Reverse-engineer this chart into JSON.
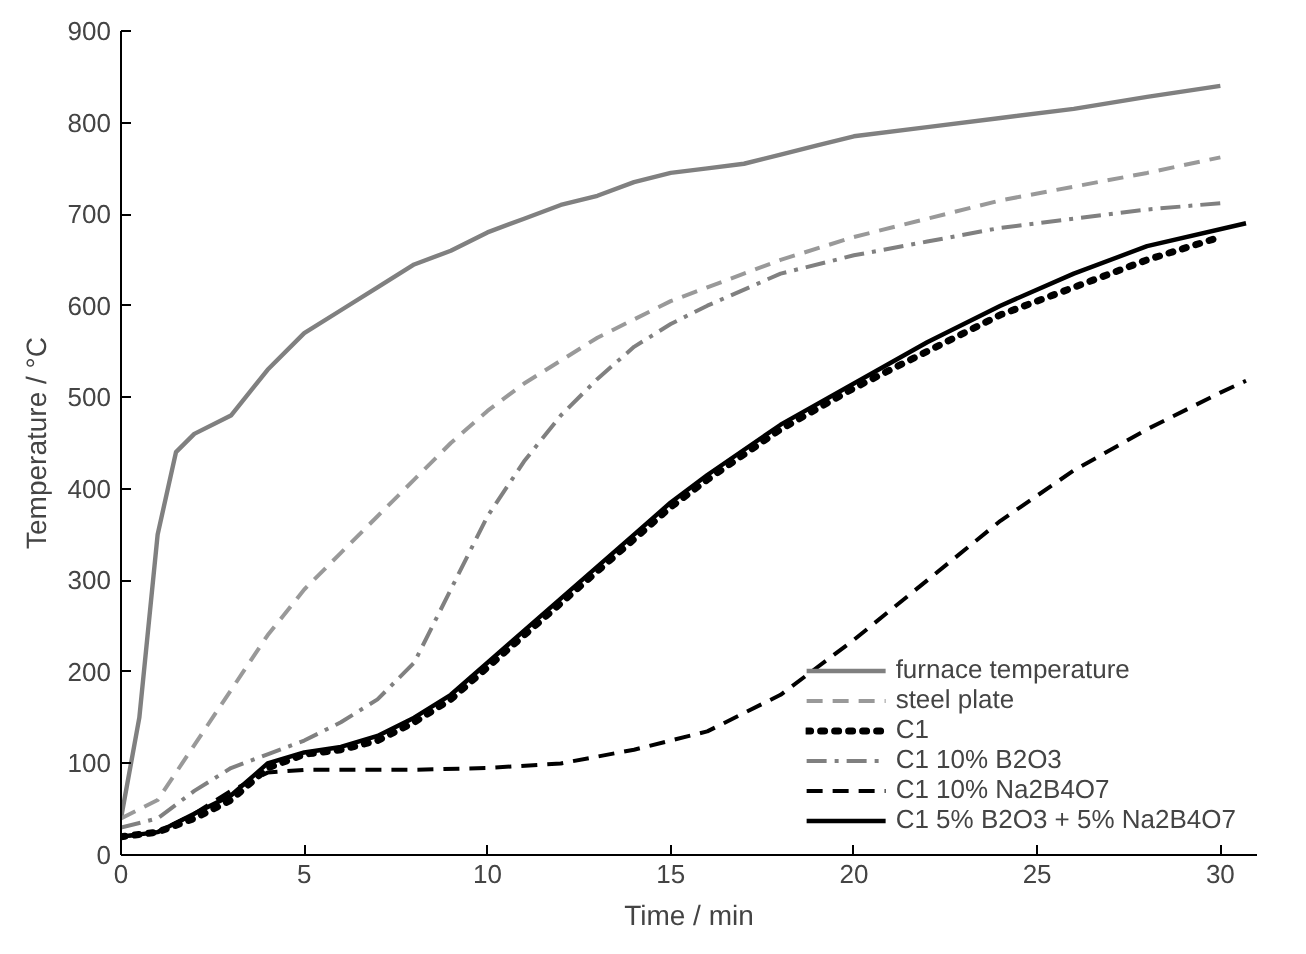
{
  "chart_data": {
    "type": "line",
    "xlabel": "Time / min",
    "ylabel": "Temperature / °C",
    "xlim": [
      0,
      31
    ],
    "ylim": [
      0,
      900
    ],
    "xticks": [
      0,
      5,
      10,
      15,
      20,
      25,
      30
    ],
    "yticks": [
      0,
      100,
      200,
      300,
      400,
      500,
      600,
      700,
      800,
      900
    ],
    "grid": false,
    "legend": "bottom right",
    "series": [
      {
        "name": "furnace temperature",
        "color": "#808080",
        "line_style": "solid",
        "x": [
          0,
          0.5,
          1,
          1.5,
          2,
          3,
          4,
          5,
          6,
          7,
          8,
          9,
          10,
          11,
          12,
          13,
          14,
          15,
          16,
          17,
          18,
          19,
          20,
          22,
          24,
          26,
          28,
          30
        ],
        "values": [
          40,
          150,
          350,
          440,
          460,
          480,
          530,
          570,
          595,
          620,
          645,
          660,
          680,
          695,
          710,
          720,
          735,
          745,
          750,
          755,
          765,
          775,
          785,
          795,
          805,
          815,
          828,
          840
        ]
      },
      {
        "name": "steel plate",
        "color": "#999999",
        "line_style": "dashed",
        "x": [
          0,
          1,
          2,
          3,
          4,
          5,
          6,
          7,
          8,
          9,
          10,
          11,
          12,
          13,
          14,
          15,
          16,
          18,
          20,
          22,
          24,
          26,
          28,
          30
        ],
        "values": [
          40,
          60,
          120,
          180,
          240,
          290,
          330,
          370,
          410,
          450,
          485,
          515,
          540,
          565,
          585,
          605,
          620,
          650,
          675,
          695,
          715,
          730,
          745,
          762
        ]
      },
      {
        "name": "C1",
        "color": "#000000",
        "line_style": "dotted",
        "x": [
          0,
          1,
          2,
          3,
          4,
          5,
          6,
          7,
          8,
          9,
          10,
          11,
          12,
          13,
          14,
          15,
          16,
          18,
          20,
          22,
          24,
          26,
          28,
          30
        ],
        "values": [
          20,
          25,
          40,
          60,
          95,
          110,
          115,
          125,
          145,
          170,
          205,
          240,
          275,
          310,
          345,
          380,
          410,
          465,
          510,
          550,
          590,
          620,
          650,
          675
        ]
      },
      {
        "name": "C1 10% B2O3",
        "color": "#808080",
        "line_style": "dashdot",
        "x": [
          0,
          1,
          2,
          3,
          4,
          5,
          6,
          7,
          8,
          9,
          10,
          11,
          12,
          13,
          14,
          15,
          16,
          18,
          20,
          22,
          24,
          26,
          28,
          30
        ],
        "values": [
          30,
          40,
          70,
          95,
          110,
          125,
          145,
          170,
          210,
          290,
          370,
          430,
          480,
          520,
          555,
          580,
          600,
          635,
          655,
          670,
          685,
          695,
          705,
          712
        ]
      },
      {
        "name": "C1 10% Na2B4O7",
        "color": "#000000",
        "line_style": "dashed",
        "x": [
          0,
          1,
          2,
          3,
          4,
          5,
          6,
          8,
          10,
          12,
          14,
          16,
          18,
          20,
          22,
          24,
          26,
          28,
          30,
          30.7
        ],
        "values": [
          20,
          25,
          45,
          70,
          90,
          93,
          93,
          93,
          95,
          100,
          115,
          135,
          175,
          235,
          300,
          365,
          420,
          465,
          505,
          518
        ]
      },
      {
        "name": "C1 5% B2O3 + 5% Na2B4O7",
        "color": "#000000",
        "line_style": "solid",
        "x": [
          0,
          1,
          2,
          3,
          4,
          5,
          6,
          7,
          8,
          9,
          10,
          11,
          12,
          13,
          14,
          15,
          16,
          18,
          20,
          22,
          24,
          26,
          28,
          30.7
        ],
        "values": [
          20,
          25,
          45,
          65,
          100,
          112,
          118,
          130,
          150,
          175,
          210,
          245,
          280,
          315,
          350,
          385,
          415,
          470,
          515,
          560,
          600,
          635,
          665,
          690
        ]
      }
    ]
  }
}
